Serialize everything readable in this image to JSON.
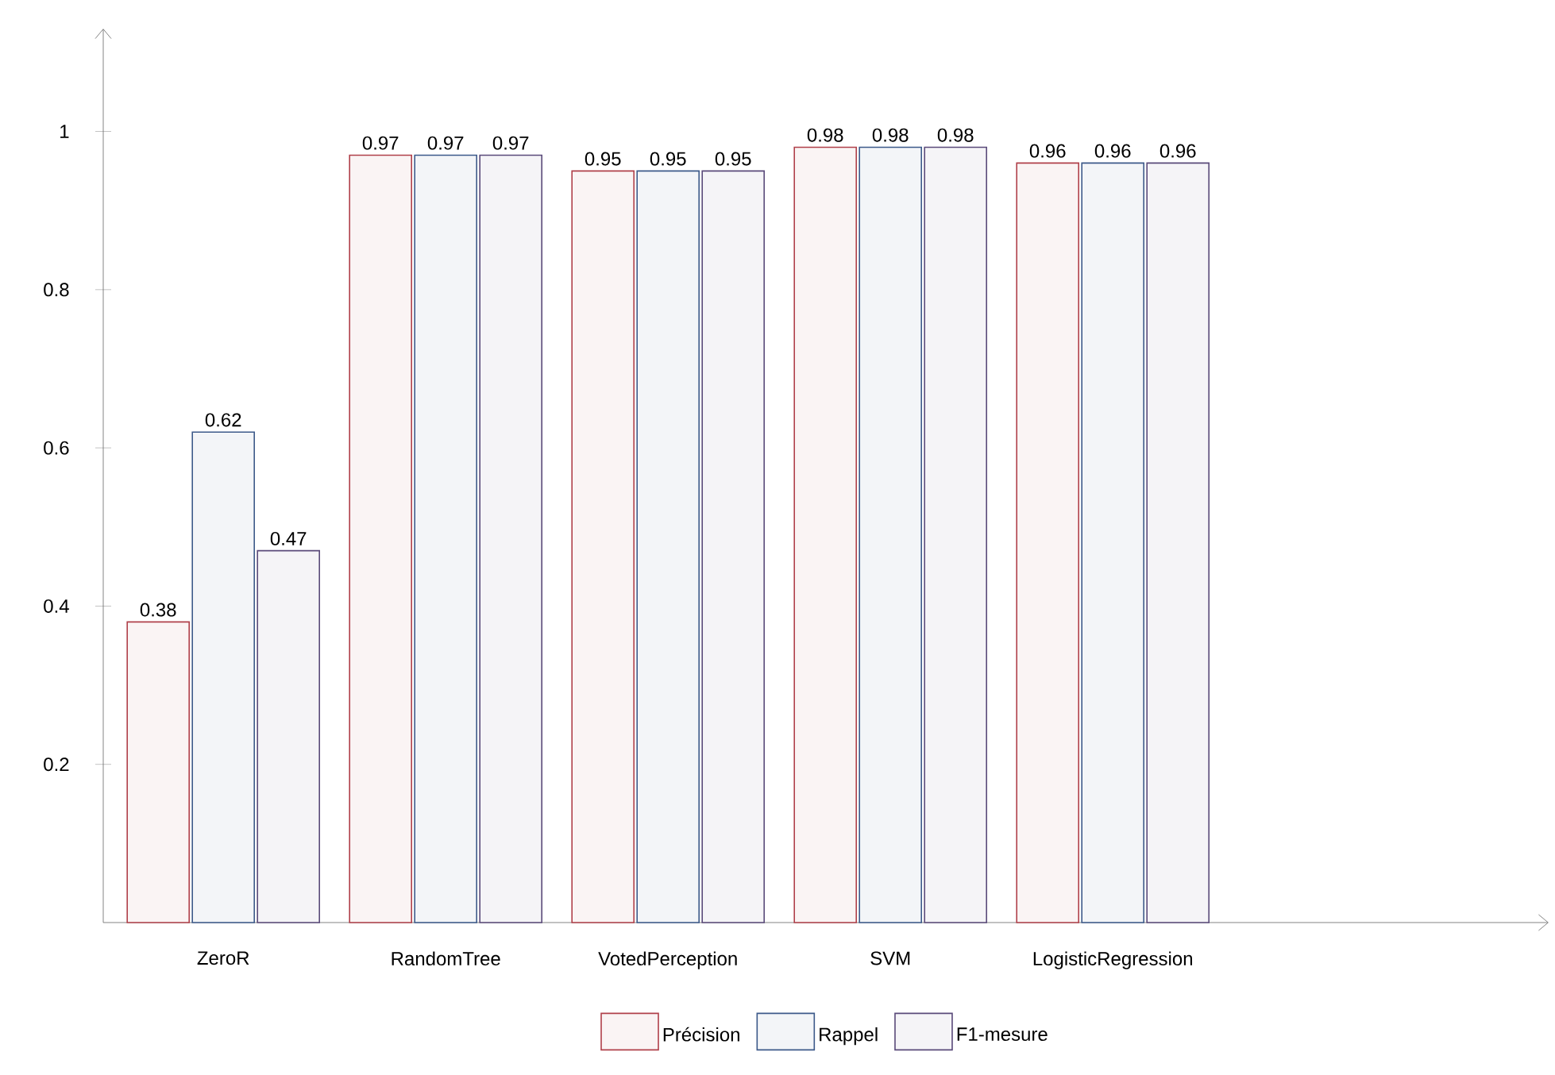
{
  "chart_data": {
    "type": "bar",
    "categories": [
      "ZeroR",
      "RandomTree",
      "VotedPerception",
      "SVM",
      "LogisticRegression"
    ],
    "series": [
      {
        "name": "Précision",
        "color": "#b0404a",
        "values": [
          0.38,
          0.97,
          0.95,
          0.98,
          0.96
        ]
      },
      {
        "name": "Rappel",
        "color": "#3d5a8a",
        "values": [
          0.62,
          0.97,
          0.95,
          0.98,
          0.96
        ]
      },
      {
        "name": "F1-mesure",
        "color": "#5a4a7a",
        "values": [
          0.47,
          0.97,
          0.95,
          0.98,
          0.96
        ]
      }
    ],
    "ylim": [
      0,
      1.13
    ],
    "yticks": [
      0.2,
      0.4,
      0.6,
      0.8,
      1
    ],
    "grid": false,
    "legend": "bottom",
    "data_labels": true
  }
}
